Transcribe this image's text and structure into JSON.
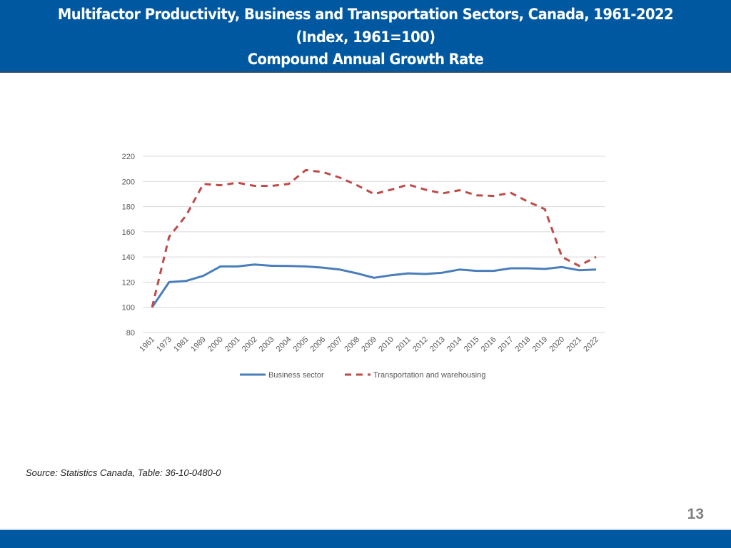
{
  "header": {
    "title_line1": "Multifactor Productivity, Business and Transportation Sectors, Canada, 1961-2022",
    "title_line2": "(Index, 1961=100)",
    "title_line3": "Compound Annual Growth Rate"
  },
  "source": "Source: Statistics Canada, Table: 36-10-0480-0",
  "page_number": "13",
  "colors": {
    "header_bg": "#0058a0",
    "business_line": "#4a7ebb",
    "transport_line": "#be4b48",
    "gridline": "#d9d9d9"
  },
  "chart_data": {
    "type": "line",
    "title": "Multifactor Productivity, Business and Transportation Sectors, Canada, 1961-2022 (Index, 1961=100)",
    "xlabel": "",
    "ylabel": "",
    "ylim": [
      80,
      220
    ],
    "yticks": [
      80,
      100,
      120,
      140,
      160,
      180,
      200,
      220
    ],
    "grid": true,
    "legend_position": "bottom",
    "categories": [
      "1961",
      "1973",
      "1981",
      "1989",
      "2000",
      "2001",
      "2002",
      "2003",
      "2004",
      "2005",
      "2006",
      "2007",
      "2008",
      "2009",
      "2010",
      "2011",
      "2012",
      "2013",
      "2014",
      "2015",
      "2016",
      "2017",
      "2018",
      "2019",
      "2020",
      "2021",
      "2022"
    ],
    "series": [
      {
        "name": "Business sector",
        "style": "solid",
        "values": [
          100,
          120,
          121,
          125,
          132.5,
          132.5,
          134,
          133,
          132.8,
          132.5,
          131.5,
          130,
          127,
          123.5,
          125.5,
          127,
          126.5,
          127.5,
          130,
          129,
          129,
          131,
          131,
          130.5,
          132,
          129.5,
          130
        ]
      },
      {
        "name": "Transportation and warehousing",
        "style": "dashed",
        "values": [
          100,
          156,
          173,
          198,
          197,
          199,
          196.5,
          196.5,
          198,
          209,
          207.5,
          203,
          197,
          190,
          193.5,
          197.5,
          193.5,
          190.5,
          193,
          189,
          188.5,
          191,
          184,
          178,
          140,
          133,
          140
        ]
      }
    ]
  }
}
